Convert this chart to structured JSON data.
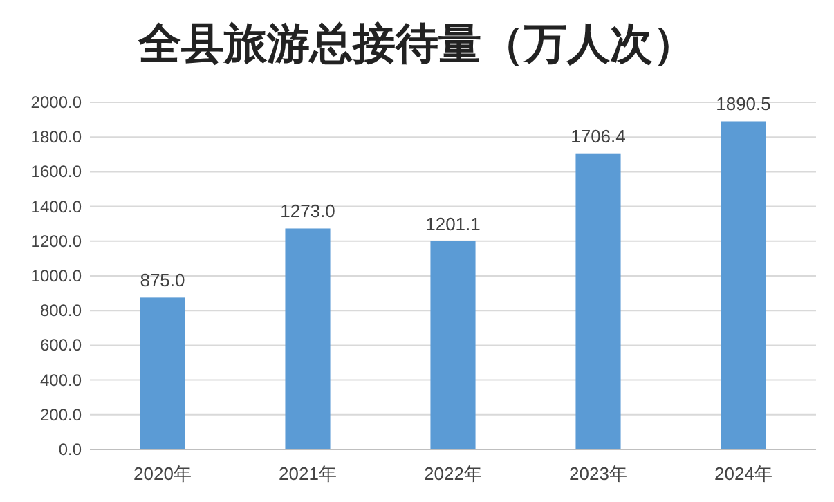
{
  "chart_data": {
    "type": "bar",
    "title": "全县旅游总接待量（万人次）",
    "categories": [
      "2020年",
      "2021年",
      "2022年",
      "2023年",
      "2024年"
    ],
    "values": [
      875.0,
      1273.0,
      1201.1,
      1706.4,
      1890.5
    ],
    "value_labels": [
      "875.0",
      "1273.0",
      "1201.1",
      "1706.4",
      "1890.5"
    ],
    "color": "#5b9bd5",
    "ylim": [
      0,
      2000
    ],
    "yticks": [
      {
        "value": 0,
        "label": "0.0"
      },
      {
        "value": 200,
        "label": "200.0"
      },
      {
        "value": 400,
        "label": "400.0"
      },
      {
        "value": 600,
        "label": "600.0"
      },
      {
        "value": 800,
        "label": "800.0"
      },
      {
        "value": 1000,
        "label": "1000.0"
      },
      {
        "value": 1200,
        "label": "1200.0"
      },
      {
        "value": 1400,
        "label": "1400.0"
      },
      {
        "value": 1600,
        "label": "1600.0"
      },
      {
        "value": 1800,
        "label": "1800.0"
      },
      {
        "value": 2000,
        "label": "2000.0"
      }
    ],
    "grid": "y"
  }
}
